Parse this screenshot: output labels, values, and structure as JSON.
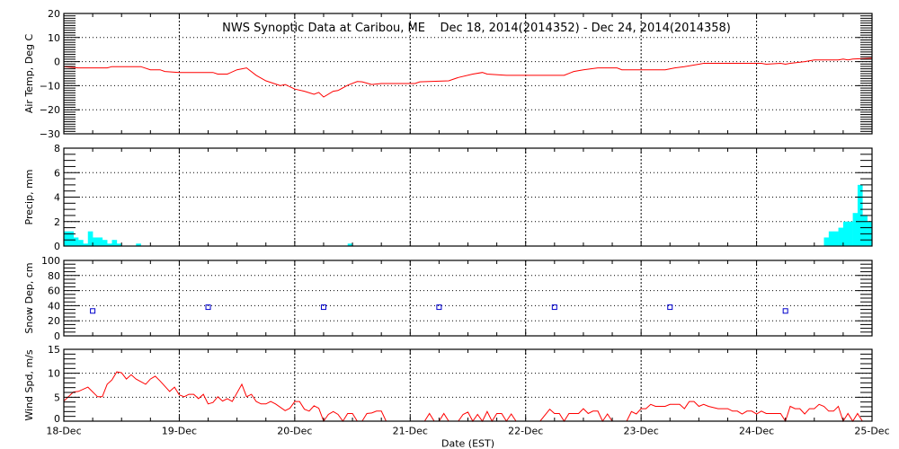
{
  "title": "NWS Synoptic Data at Caribou, ME    Dec 18, 2014(2014352) - Dec 24, 2014(2014358)",
  "colors": {
    "temp": "#FF0000",
    "precip": "#00FFFF",
    "snow": "#0000CC",
    "wind": "#FF0000",
    "axis": "#000000"
  },
  "chart_data": [
    {
      "type": "line",
      "ylabel": "Air Temp, Deg C",
      "ylim": [
        -30,
        20
      ],
      "yticks": [
        -30,
        -20,
        -10,
        0,
        10,
        20
      ],
      "xlim": [
        "2014-12-18T00:00",
        "2014-12-25T00:00"
      ],
      "grid": true,
      "points": [
        [
          "2014-12-18T00:00",
          -2.1
        ],
        [
          "2014-12-18T03:00",
          -2.6
        ],
        [
          "2014-12-18T09:00",
          -2.6
        ],
        [
          "2014-12-18T10:00",
          -2.1
        ],
        [
          "2014-12-18T16:00",
          -2.1
        ],
        [
          "2014-12-18T18:00",
          -3.4
        ],
        [
          "2014-12-18T20:00",
          -3.4
        ],
        [
          "2014-12-18T21:00",
          -4.1
        ],
        [
          "2014-12-19T00:00",
          -4.5
        ],
        [
          "2014-12-19T07:00",
          -4.5
        ],
        [
          "2014-12-19T08:00",
          -5.2
        ],
        [
          "2014-12-19T10:00",
          -5.2
        ],
        [
          "2014-12-19T12:00",
          -3.4
        ],
        [
          "2014-12-19T14:00",
          -2.6
        ],
        [
          "2014-12-19T16:00",
          -5.7
        ],
        [
          "2014-12-19T18:00",
          -8.0
        ],
        [
          "2014-12-19T21:00",
          -10.0
        ],
        [
          "2014-12-19T22:00",
          -9.5
        ],
        [
          "2014-12-20T00:00",
          -11.4
        ],
        [
          "2014-12-20T02:00",
          -12.3
        ],
        [
          "2014-12-20T04:00",
          -13.6
        ],
        [
          "2014-12-20T05:00",
          -12.8
        ],
        [
          "2014-12-20T06:00",
          -14.7
        ],
        [
          "2014-12-20T08:00",
          -12.3
        ],
        [
          "2014-12-20T09:00",
          -12.0
        ],
        [
          "2014-12-20T11:00",
          -9.8
        ],
        [
          "2014-12-20T13:00",
          -8.3
        ],
        [
          "2014-12-20T14:00",
          -8.4
        ],
        [
          "2014-12-20T16:00",
          -9.5
        ],
        [
          "2014-12-20T18:00",
          -9.1
        ],
        [
          "2014-12-21T01:00",
          -9.1
        ],
        [
          "2014-12-21T02:00",
          -8.4
        ],
        [
          "2014-12-21T08:00",
          -8.0
        ],
        [
          "2014-12-21T10:00",
          -6.6
        ],
        [
          "2014-12-21T13:00",
          -5.2
        ],
        [
          "2014-12-21T15:00",
          -4.5
        ],
        [
          "2014-12-21T16:00",
          -5.2
        ],
        [
          "2014-12-21T20:00",
          -5.7
        ],
        [
          "2014-12-22T08:00",
          -5.7
        ],
        [
          "2014-12-22T10:00",
          -4.1
        ],
        [
          "2014-12-22T12:00",
          -3.4
        ],
        [
          "2014-12-22T15:00",
          -2.6
        ],
        [
          "2014-12-22T19:00",
          -2.6
        ],
        [
          "2014-12-22T20:00",
          -3.4
        ],
        [
          "2014-12-23T05:00",
          -3.4
        ],
        [
          "2014-12-23T07:00",
          -2.6
        ],
        [
          "2014-12-23T09:00",
          -2.1
        ],
        [
          "2014-12-23T12:00",
          -1.1
        ],
        [
          "2014-12-23T13:00",
          -0.7
        ],
        [
          "2014-12-24T01:00",
          -0.7
        ],
        [
          "2014-12-24T02:00",
          -1.1
        ],
        [
          "2014-12-24T05:00",
          -0.7
        ],
        [
          "2014-12-24T06:00",
          -1.1
        ],
        [
          "2014-12-24T07:00",
          -0.7
        ],
        [
          "2014-12-24T10:00",
          0.0
        ],
        [
          "2014-12-24T12:00",
          0.7
        ],
        [
          "2014-12-24T17:00",
          0.7
        ],
        [
          "2014-12-24T18:00",
          1.1
        ],
        [
          "2014-12-24T19:00",
          0.7
        ],
        [
          "2014-12-24T20:00",
          1.1
        ],
        [
          "2014-12-25T00:00",
          1.4
        ]
      ]
    },
    {
      "type": "bar",
      "ylabel": "Precip, mm",
      "ylim": [
        0,
        8
      ],
      "yticks": [
        0,
        2,
        4,
        6,
        8
      ],
      "grid": true,
      "points": [
        [
          "2014-12-18T00:00",
          1.2
        ],
        [
          "2014-12-18T01:00",
          1.2
        ],
        [
          "2014-12-18T02:00",
          0.7
        ],
        [
          "2014-12-18T03:00",
          0.5
        ],
        [
          "2014-12-18T04:00",
          0.2
        ],
        [
          "2014-12-18T05:00",
          1.2
        ],
        [
          "2014-12-18T06:00",
          0.7
        ],
        [
          "2014-12-18T07:00",
          0.7
        ],
        [
          "2014-12-18T08:00",
          0.5
        ],
        [
          "2014-12-18T09:00",
          0.2
        ],
        [
          "2014-12-18T10:00",
          0.5
        ],
        [
          "2014-12-18T11:00",
          0.2
        ],
        [
          "2014-12-18T15:00",
          0.2
        ],
        [
          "2014-12-20T11:00",
          0.2
        ],
        [
          "2014-12-24T14:00",
          0.7
        ],
        [
          "2014-12-24T15:00",
          1.2
        ],
        [
          "2014-12-24T16:00",
          1.2
        ],
        [
          "2014-12-24T17:00",
          1.5
        ],
        [
          "2014-12-24T18:00",
          2.0
        ],
        [
          "2014-12-24T19:00",
          2.0
        ],
        [
          "2014-12-24T20:00",
          2.7
        ],
        [
          "2014-12-24T21:00",
          5.0
        ],
        [
          "2014-12-24T22:00",
          2.5
        ],
        [
          "2014-12-24T23:00",
          2.0
        ]
      ]
    },
    {
      "type": "scatter",
      "ylabel": "Snow Dep, cm",
      "ylim": [
        0,
        100
      ],
      "yticks": [
        0,
        20,
        40,
        60,
        80,
        100
      ],
      "grid": true,
      "points": [
        [
          "2014-12-18T06:00",
          33
        ],
        [
          "2014-12-19T06:00",
          38
        ],
        [
          "2014-12-20T06:00",
          38
        ],
        [
          "2014-12-21T06:00",
          38
        ],
        [
          "2014-12-22T06:00",
          38
        ],
        [
          "2014-12-23T06:00",
          38
        ],
        [
          "2014-12-24T06:00",
          33
        ]
      ]
    },
    {
      "type": "line",
      "ylabel": "Wind Spd, m/s",
      "xlabel": "Date (EST)",
      "ylim": [
        0,
        15
      ],
      "yticks": [
        0,
        5,
        10,
        15
      ],
      "xticklabels": [
        "18-Dec",
        "19-Dec",
        "20-Dec",
        "21-Dec",
        "22-Dec",
        "23-Dec",
        "24-Dec",
        "25-Dec"
      ],
      "grid": true,
      "points": [
        [
          "2014-12-18T00:00",
          4.2
        ],
        [
          "2014-12-18T02:00",
          6.1
        ],
        [
          "2014-12-18T03:00",
          6.2
        ],
        [
          "2014-12-18T05:00",
          7.1
        ],
        [
          "2014-12-18T07:00",
          5.1
        ],
        [
          "2014-12-18T08:00",
          5.1
        ],
        [
          "2014-12-18T09:00",
          7.7
        ],
        [
          "2014-12-18T10:00",
          8.6
        ],
        [
          "2014-12-18T11:00",
          10.3
        ],
        [
          "2014-12-18T12:00",
          10.1
        ],
        [
          "2014-12-18T13:00",
          8.8
        ],
        [
          "2014-12-18T14:00",
          9.7
        ],
        [
          "2014-12-18T15:00",
          8.8
        ],
        [
          "2014-12-18T17:00",
          7.7
        ],
        [
          "2014-12-18T18:00",
          8.8
        ],
        [
          "2014-12-18T19:00",
          9.4
        ],
        [
          "2014-12-18T20:00",
          8.4
        ],
        [
          "2014-12-18T22:00",
          6.2
        ],
        [
          "2014-12-18T23:00",
          7.1
        ],
        [
          "2014-12-19T00:00",
          5.5
        ],
        [
          "2014-12-19T01:00",
          5.1
        ],
        [
          "2014-12-19T02:00",
          5.6
        ],
        [
          "2014-12-19T03:00",
          5.6
        ],
        [
          "2014-12-19T04:00",
          4.7
        ],
        [
          "2014-12-19T05:00",
          5.6
        ],
        [
          "2014-12-19T06:00",
          3.6
        ],
        [
          "2014-12-19T07:00",
          3.9
        ],
        [
          "2014-12-19T08:00",
          5.1
        ],
        [
          "2014-12-19T09:00",
          4.2
        ],
        [
          "2014-12-19T10:00",
          4.7
        ],
        [
          "2014-12-19T11:00",
          4.1
        ],
        [
          "2014-12-19T13:00",
          7.7
        ],
        [
          "2014-12-19T14:00",
          5.1
        ],
        [
          "2014-12-19T15:00",
          5.6
        ],
        [
          "2014-12-19T16:00",
          4.1
        ],
        [
          "2014-12-19T17:00",
          3.6
        ],
        [
          "2014-12-19T18:00",
          3.6
        ],
        [
          "2014-12-19T19:00",
          4.1
        ],
        [
          "2014-12-19T20:00",
          3.6
        ],
        [
          "2014-12-19T22:00",
          2.2
        ],
        [
          "2014-12-19T23:00",
          2.7
        ],
        [
          "2014-12-20T00:00",
          4.1
        ],
        [
          "2014-12-20T01:00",
          4.1
        ],
        [
          "2014-12-20T02:00",
          2.5
        ],
        [
          "2014-12-20T03:00",
          2.1
        ],
        [
          "2014-12-20T04:00",
          3.2
        ],
        [
          "2014-12-20T05:00",
          2.7
        ],
        [
          "2014-12-20T06:00",
          0
        ],
        [
          "2014-12-20T07:00",
          1.4
        ],
        [
          "2014-12-20T08:00",
          2.0
        ],
        [
          "2014-12-20T09:00",
          1.4
        ],
        [
          "2014-12-20T10:00",
          0
        ],
        [
          "2014-12-20T11:00",
          1.6
        ],
        [
          "2014-12-20T12:00",
          1.6
        ],
        [
          "2014-12-20T13:00",
          0
        ],
        [
          "2014-12-20T14:00",
          0
        ],
        [
          "2014-12-20T15:00",
          1.6
        ],
        [
          "2014-12-20T16:00",
          1.7
        ],
        [
          "2014-12-20T17:00",
          2.1
        ],
        [
          "2014-12-20T18:00",
          2.1
        ],
        [
          "2014-12-20T19:00",
          0
        ],
        [
          "2014-12-21T03:00",
          0
        ],
        [
          "2014-12-21T04:00",
          1.6
        ],
        [
          "2014-12-21T05:00",
          0
        ],
        [
          "2014-12-21T06:00",
          0
        ],
        [
          "2014-12-21T07:00",
          1.6
        ],
        [
          "2014-12-21T08:00",
          0
        ],
        [
          "2014-12-21T10:00",
          0
        ],
        [
          "2014-12-21T11:00",
          1.4
        ],
        [
          "2014-12-21T12:00",
          1.9
        ],
        [
          "2014-12-21T13:00",
          0
        ],
        [
          "2014-12-21T14:00",
          1.4
        ],
        [
          "2014-12-21T15:00",
          0
        ],
        [
          "2014-12-21T16:00",
          2.0
        ],
        [
          "2014-12-21T17:00",
          0
        ],
        [
          "2014-12-21T18:00",
          1.6
        ],
        [
          "2014-12-21T19:00",
          1.6
        ],
        [
          "2014-12-21T20:00",
          0
        ],
        [
          "2014-12-21T21:00",
          1.5
        ],
        [
          "2014-12-21T22:00",
          0
        ],
        [
          "2014-12-22T03:00",
          0
        ],
        [
          "2014-12-22T05:00",
          2.5
        ],
        [
          "2014-12-22T06:00",
          1.6
        ],
        [
          "2014-12-22T07:00",
          1.6
        ],
        [
          "2014-12-22T08:00",
          0
        ],
        [
          "2014-12-22T09:00",
          1.6
        ],
        [
          "2014-12-22T11:00",
          1.6
        ],
        [
          "2014-12-22T12:00",
          2.6
        ],
        [
          "2014-12-22T13:00",
          1.6
        ],
        [
          "2014-12-22T14:00",
          2.1
        ],
        [
          "2014-12-22T15:00",
          2.1
        ],
        [
          "2014-12-22T16:00",
          0
        ],
        [
          "2014-12-22T17:00",
          1.5
        ],
        [
          "2014-12-22T18:00",
          0
        ],
        [
          "2014-12-22T21:00",
          0
        ],
        [
          "2014-12-22T22:00",
          2.0
        ],
        [
          "2014-12-22T23:00",
          1.5
        ],
        [
          "2014-12-23T00:00",
          2.6
        ],
        [
          "2014-12-23T01:00",
          2.6
        ],
        [
          "2014-12-23T02:00",
          3.5
        ],
        [
          "2014-12-23T03:00",
          3.1
        ],
        [
          "2014-12-23T05:00",
          3.1
        ],
        [
          "2014-12-23T06:00",
          3.5
        ],
        [
          "2014-12-23T08:00",
          3.5
        ],
        [
          "2014-12-23T09:00",
          2.6
        ],
        [
          "2014-12-23T10:00",
          4.1
        ],
        [
          "2014-12-23T11:00",
          4.1
        ],
        [
          "2014-12-23T12:00",
          3.1
        ],
        [
          "2014-12-23T13:00",
          3.5
        ],
        [
          "2014-12-23T14:00",
          3.1
        ],
        [
          "2014-12-23T16:00",
          2.6
        ],
        [
          "2014-12-23T18:00",
          2.6
        ],
        [
          "2014-12-23T19:00",
          2.1
        ],
        [
          "2014-12-23T20:00",
          2.1
        ],
        [
          "2014-12-23T21:00",
          1.5
        ],
        [
          "2014-12-23T22:00",
          2.1
        ],
        [
          "2014-12-23T23:00",
          2.1
        ],
        [
          "2014-12-24T00:00",
          1.5
        ],
        [
          "2014-12-24T01:00",
          2.1
        ],
        [
          "2014-12-24T02:00",
          1.6
        ],
        [
          "2014-12-24T05:00",
          1.6
        ],
        [
          "2014-12-24T06:00",
          0
        ],
        [
          "2014-12-24T07:00",
          3.1
        ],
        [
          "2014-12-24T08:00",
          2.6
        ],
        [
          "2014-12-24T09:00",
          2.6
        ],
        [
          "2014-12-24T10:00",
          1.5
        ],
        [
          "2014-12-24T11:00",
          2.6
        ],
        [
          "2014-12-24T12:00",
          2.6
        ],
        [
          "2014-12-24T13:00",
          3.5
        ],
        [
          "2014-12-24T14:00",
          3.1
        ],
        [
          "2014-12-24T15:00",
          2.1
        ],
        [
          "2014-12-24T16:00",
          2.1
        ],
        [
          "2014-12-24T17:00",
          3.1
        ],
        [
          "2014-12-24T18:00",
          0
        ],
        [
          "2014-12-24T19:00",
          1.6
        ],
        [
          "2014-12-24T20:00",
          0
        ],
        [
          "2014-12-24T21:00",
          1.6
        ],
        [
          "2014-12-24T22:00",
          0
        ]
      ]
    }
  ]
}
